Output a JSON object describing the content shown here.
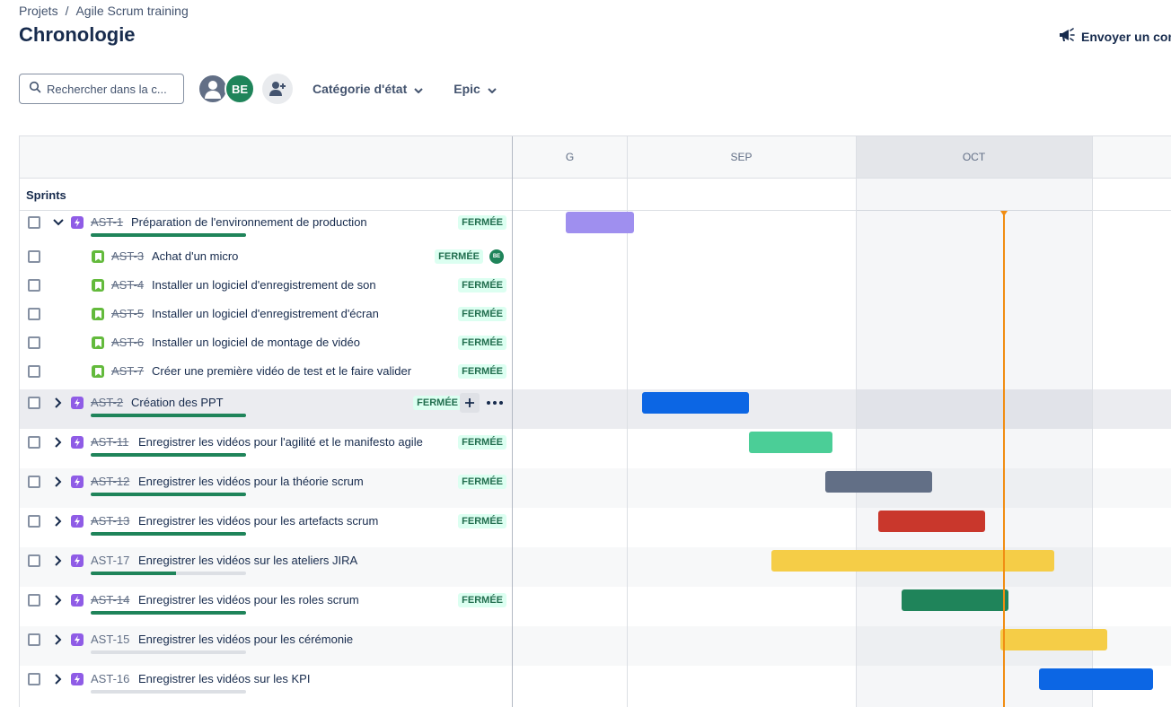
{
  "breadcrumb": {
    "project": "Projets",
    "separator": "/",
    "board": "Agile Scrum training"
  },
  "page_title": "Chronologie",
  "feedback_label": "Envoyer un com",
  "search": {
    "placeholder": "Rechercher dans la c..."
  },
  "avatar_initials": "BE",
  "filters": {
    "status_category": "Catégorie d'état",
    "epic": "Epic"
  },
  "timeline": {
    "months": [
      "G",
      "SEP",
      "OCT"
    ],
    "sprints_label": "Sprints",
    "rows": [
      {
        "key": "AST-1",
        "summary": "Préparation de l'environnement de production",
        "type": "epic",
        "done": true,
        "status": "FERMÉE",
        "expanded": true,
        "progress": 1.0,
        "bar_color": "#9f8fef"
      },
      {
        "key": "AST-3",
        "summary": "Achat d'un micro",
        "type": "story",
        "done": true,
        "status": "FERMÉE",
        "assignee": "BE"
      },
      {
        "key": "AST-4",
        "summary": "Installer un logiciel d'enregistrement de son",
        "type": "story",
        "done": true,
        "status": "FERMÉE"
      },
      {
        "key": "AST-5",
        "summary": "Installer un logiciel d'enregistrement d'écran",
        "type": "story",
        "done": true,
        "status": "FERMÉE"
      },
      {
        "key": "AST-6",
        "summary": "Installer un logiciel de montage de vidéo",
        "type": "story",
        "done": true,
        "status": "FERMÉE"
      },
      {
        "key": "AST-7",
        "summary": "Créer une première vidéo de test et le faire valider",
        "type": "story",
        "done": true,
        "status": "FERMÉE"
      },
      {
        "key": "AST-2",
        "summary": "Création des PPT",
        "type": "epic",
        "done": true,
        "status": "FERMÉE",
        "progress": 1.0,
        "bar_color": "#0c66e4"
      },
      {
        "key": "AST-11",
        "summary": "Enregistrer les vidéos pour l'agilité et le manifesto agile",
        "type": "epic",
        "done": true,
        "status": "FERMÉE",
        "progress": 1.0,
        "bar_color": "#4bce97"
      },
      {
        "key": "AST-12",
        "summary": "Enregistrer les vidéos pour la théorie scrum",
        "type": "epic",
        "done": true,
        "status": "FERMÉE",
        "progress": 1.0,
        "bar_color": "#626f86"
      },
      {
        "key": "AST-13",
        "summary": "Enregistrer les vidéos pour les artefacts scrum",
        "type": "epic",
        "done": true,
        "status": "FERMÉE",
        "progress": 1.0,
        "bar_color": "#c9372c"
      },
      {
        "key": "AST-17",
        "summary": "Enregistrer les vidéos sur les ateliers JIRA",
        "type": "epic",
        "done": false,
        "status": "",
        "progress": 0.55,
        "bar_color": "#f5cd47"
      },
      {
        "key": "AST-14",
        "summary": "Enregistrer les vidéos pour les roles scrum",
        "type": "epic",
        "done": true,
        "status": "FERMÉE",
        "progress": 1.0,
        "bar_color": "#1f845a"
      },
      {
        "key": "AST-15",
        "summary": "Enregistrer les vidéos pour les cérémonie",
        "type": "epic",
        "done": false,
        "status": "",
        "progress": 0.0,
        "bar_color": "#f5cd47"
      },
      {
        "key": "AST-16",
        "summary": "Enregistrer les vidéos sur les KPI",
        "type": "epic",
        "done": false,
        "status": "",
        "progress": 0.0,
        "bar_color": "#0c66e4"
      }
    ]
  },
  "colors": {
    "accent": "#0c66e4",
    "today": "#f18d13",
    "done_badge_bg": "#dcfff1",
    "done_badge_text": "#216e4e"
  }
}
